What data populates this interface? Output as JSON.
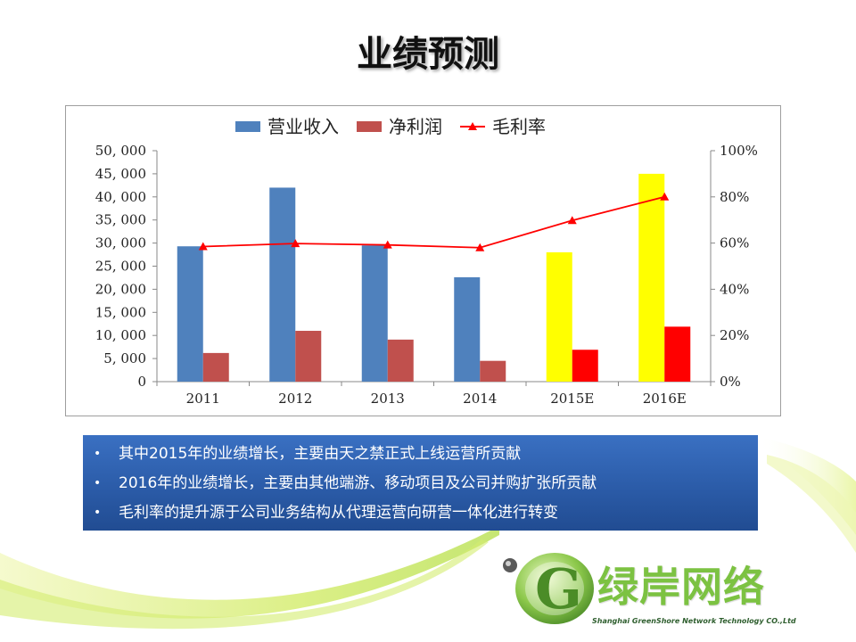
{
  "slide": {
    "title": "业绩预测",
    "bullets": [
      "其中2015年的业绩增长，主要由天之禁正式上线运营所贡献",
      "2016年的业绩增长，主要由其他端游、移动项目及公司并购扩张所贡献",
      "毛利率的提升源于公司业务结构从代理运营向研营一体化进行转变"
    ],
    "bullet_symbol": "•"
  },
  "logo": {
    "name": "绿岸网络",
    "subtitle": "Shanghai GreenShore Network Technology CO.,Ltd",
    "letter": "G",
    "color": "#7cc242"
  },
  "chart_data": {
    "type": "bar",
    "categories": [
      "2011",
      "2012",
      "2013",
      "2014",
      "2015E",
      "2016E"
    ],
    "series": [
      {
        "name": "营业收入",
        "kind": "bar",
        "axis": "left",
        "values": [
          29300,
          42000,
          29500,
          22600,
          28000,
          45000
        ],
        "colors": [
          "#4f81bd",
          "#4f81bd",
          "#4f81bd",
          "#4f81bd",
          "#ffff00",
          "#ffff00"
        ]
      },
      {
        "name": "净利润",
        "kind": "bar",
        "axis": "left",
        "values": [
          6200,
          11000,
          9100,
          4500,
          6900,
          11900
        ],
        "colors": [
          "#c0504d",
          "#c0504d",
          "#c0504d",
          "#c0504d",
          "#ff0000",
          "#ff0000"
        ]
      },
      {
        "name": "毛利率",
        "kind": "line",
        "axis": "right",
        "values": [
          58.5,
          59.8,
          59.2,
          58.0,
          69.8,
          80.0
        ],
        "color": "#ff0000",
        "marker": "triangle"
      }
    ],
    "y_left": {
      "min": 0,
      "max": 50000,
      "step": 5000,
      "tick_labels": [
        "0",
        "5, 000",
        "10, 000",
        "15, 000",
        "20, 000",
        "25, 000",
        "30, 000",
        "35, 000",
        "40, 000",
        "45, 000",
        "50, 000"
      ]
    },
    "y_right": {
      "min": 0,
      "max": 100,
      "step": 20,
      "tick_labels": [
        "0%",
        "20%",
        "40%",
        "60%",
        "80%",
        "100%"
      ]
    },
    "grid": false,
    "legend": "top",
    "legend_colors": {
      "营业收入": "#4f81bd",
      "净利润": "#c0504d",
      "毛利率": "#ff0000"
    }
  }
}
